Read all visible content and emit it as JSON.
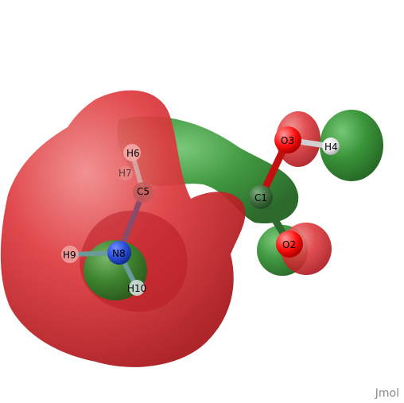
{
  "app": {
    "name": "Jmol"
  },
  "colors": {
    "background": "#ffffff",
    "negative_lobe": "#d9262b",
    "positive_lobe": "#2e8b2e",
    "oxygen": "#ff0d0d",
    "carbon": "#3c6e3c",
    "nitrogen": "#2a4cd8",
    "hydrogen": "#ececec"
  },
  "atoms": [
    {
      "id": "C1",
      "label": "C1",
      "element": "carbon"
    },
    {
      "id": "O2",
      "label": "O2",
      "element": "oxygen"
    },
    {
      "id": "O3",
      "label": "O3",
      "element": "oxygen"
    },
    {
      "id": "H4",
      "label": "H4",
      "element": "hydrogen"
    },
    {
      "id": "C5",
      "label": "C5",
      "element": "carbon"
    },
    {
      "id": "H6",
      "label": "H6",
      "element": "hydrogen"
    },
    {
      "id": "H7",
      "label": "H7",
      "element": "hydrogen"
    },
    {
      "id": "N8",
      "label": "N8",
      "element": "nitrogen"
    },
    {
      "id": "H9",
      "label": "H9",
      "element": "hydrogen"
    },
    {
      "id": "H10",
      "label": "H10",
      "element": "hydrogen"
    }
  ]
}
